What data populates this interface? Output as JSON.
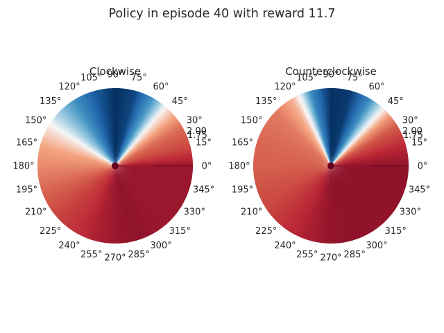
{
  "figure": {
    "title": "Policy in episode 40 with reward 11.7"
  },
  "chart_data": [
    {
      "type": "heatmap",
      "projection": "polar",
      "title": "Clockwise",
      "theta_tick_labels": [
        "0°",
        "15°",
        "30°",
        "45°",
        "60°",
        "75°",
        "90°",
        "105°",
        "120°",
        "135°",
        "150°",
        "165°",
        "180°",
        "195°",
        "210°",
        "225°",
        "240°",
        "255°",
        "270°",
        "285°",
        "300°",
        "315°",
        "330°",
        "345°"
      ],
      "r_tick_labels": [
        "1.75",
        "2.00"
      ],
      "rlim": [
        0,
        2
      ],
      "colormap": "RdBu_r",
      "value_range": [
        -1,
        1
      ],
      "angular_profile": [
        [
          0,
          0.85
        ],
        [
          15,
          0.6
        ],
        [
          30,
          0.45
        ],
        [
          40,
          0.25
        ],
        [
          50,
          0.0
        ],
        [
          60,
          -0.45
        ],
        [
          75,
          -0.9
        ],
        [
          90,
          -1.0
        ],
        [
          105,
          -0.8
        ],
        [
          120,
          -0.55
        ],
        [
          135,
          -0.25
        ],
        [
          150,
          0.05
        ],
        [
          165,
          0.25
        ],
        [
          180,
          0.35
        ],
        [
          195,
          0.45
        ],
        [
          210,
          0.55
        ],
        [
          225,
          0.65
        ],
        [
          240,
          0.72
        ],
        [
          255,
          0.8
        ],
        [
          270,
          0.85
        ],
        [
          285,
          0.88
        ],
        [
          300,
          0.86
        ],
        [
          315,
          0.85
        ],
        [
          330,
          0.85
        ],
        [
          345,
          0.85
        ],
        [
          360,
          0.85
        ]
      ],
      "trajectory_line": {
        "theta_deg": 0,
        "color": "#67001f"
      },
      "center_marker": {
        "color": "#67001f"
      }
    },
    {
      "type": "heatmap",
      "projection": "polar",
      "title": "Counterclockwise",
      "theta_tick_labels": [
        "0°",
        "15°",
        "30°",
        "45°",
        "60°",
        "75°",
        "90°",
        "105°",
        "120°",
        "135°",
        "150°",
        "165°",
        "180°",
        "195°",
        "210°",
        "225°",
        "240°",
        "255°",
        "270°",
        "285°",
        "300°",
        "315°",
        "330°",
        "345°"
      ],
      "r_tick_labels": [
        "1.75",
        "2.00"
      ],
      "rlim": [
        0,
        2
      ],
      "colormap": "RdBu_r",
      "value_range": [
        -1,
        1
      ],
      "angular_profile": [
        [
          0,
          0.88
        ],
        [
          15,
          0.75
        ],
        [
          30,
          0.55
        ],
        [
          40,
          0.3
        ],
        [
          50,
          -0.1
        ],
        [
          60,
          -0.55
        ],
        [
          75,
          -0.95
        ],
        [
          90,
          -1.0
        ],
        [
          105,
          -0.55
        ],
        [
          112,
          -0.1
        ],
        [
          120,
          0.2
        ],
        [
          135,
          0.4
        ],
        [
          150,
          0.45
        ],
        [
          165,
          0.48
        ],
        [
          180,
          0.5
        ],
        [
          195,
          0.55
        ],
        [
          210,
          0.6
        ],
        [
          225,
          0.68
        ],
        [
          240,
          0.75
        ],
        [
          255,
          0.82
        ],
        [
          270,
          0.87
        ],
        [
          285,
          0.88
        ],
        [
          300,
          0.88
        ],
        [
          315,
          0.88
        ],
        [
          330,
          0.88
        ],
        [
          345,
          0.88
        ],
        [
          360,
          0.88
        ]
      ],
      "trajectory_line": {
        "theta_deg": 0,
        "color": "#67001f"
      },
      "center_marker": {
        "color": "#67001f"
      }
    }
  ]
}
